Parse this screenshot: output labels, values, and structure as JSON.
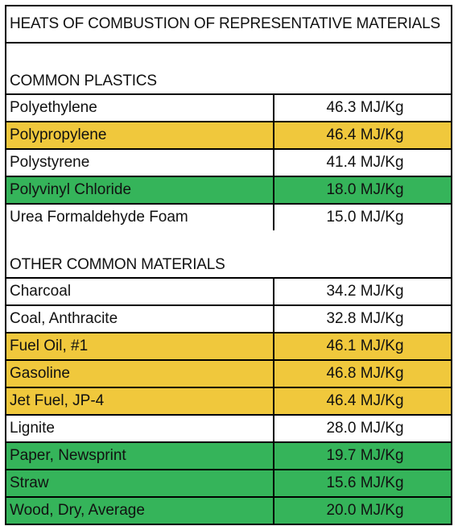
{
  "title": "HEATS OF COMBUSTION OF REPRESENTATIVE MATERIALS",
  "colors": {
    "yellow": "#f0c83c",
    "green": "#35b45a",
    "white": "#ffffff"
  },
  "sections": [
    {
      "heading": "COMMON PLASTICS",
      "rows": [
        {
          "name": "Polyethylene",
          "value": "46.3 MJ/Kg",
          "highlight": "none"
        },
        {
          "name": "Polypropylene",
          "value": "46.4 MJ/Kg",
          "highlight": "yellow"
        },
        {
          "name": "Polystyrene",
          "value": "41.4 MJ/Kg",
          "highlight": "none"
        },
        {
          "name": "Polyvinyl Chloride",
          "value": "18.0 MJ/Kg",
          "highlight": "green"
        },
        {
          "name": "Urea Formaldehyde Foam",
          "value": "15.0 MJ/Kg",
          "highlight": "none"
        }
      ]
    },
    {
      "heading": "OTHER COMMON MATERIALS",
      "rows": [
        {
          "name": "Charcoal",
          "value": "34.2 MJ/Kg",
          "highlight": "none"
        },
        {
          "name": "Coal, Anthracite",
          "value": "32.8 MJ/Kg",
          "highlight": "none"
        },
        {
          "name": "Fuel Oil, #1",
          "value": "46.1 MJ/Kg",
          "highlight": "yellow"
        },
        {
          "name": "Gasoline",
          "value": "46.8 MJ/Kg",
          "highlight": "yellow"
        },
        {
          "name": "Jet Fuel, JP-4",
          "value": "46.4 MJ/Kg",
          "highlight": "yellow"
        },
        {
          "name": "Lignite",
          "value": "28.0 MJ/Kg",
          "highlight": "none"
        },
        {
          "name": "Paper, Newsprint",
          "value": "19.7 MJ/Kg",
          "highlight": "green"
        },
        {
          "name": "Straw",
          "value": "15.6 MJ/Kg",
          "highlight": "green"
        },
        {
          "name": "Wood, Dry, Average",
          "value": "20.0 MJ/Kg",
          "highlight": "green"
        }
      ]
    }
  ]
}
